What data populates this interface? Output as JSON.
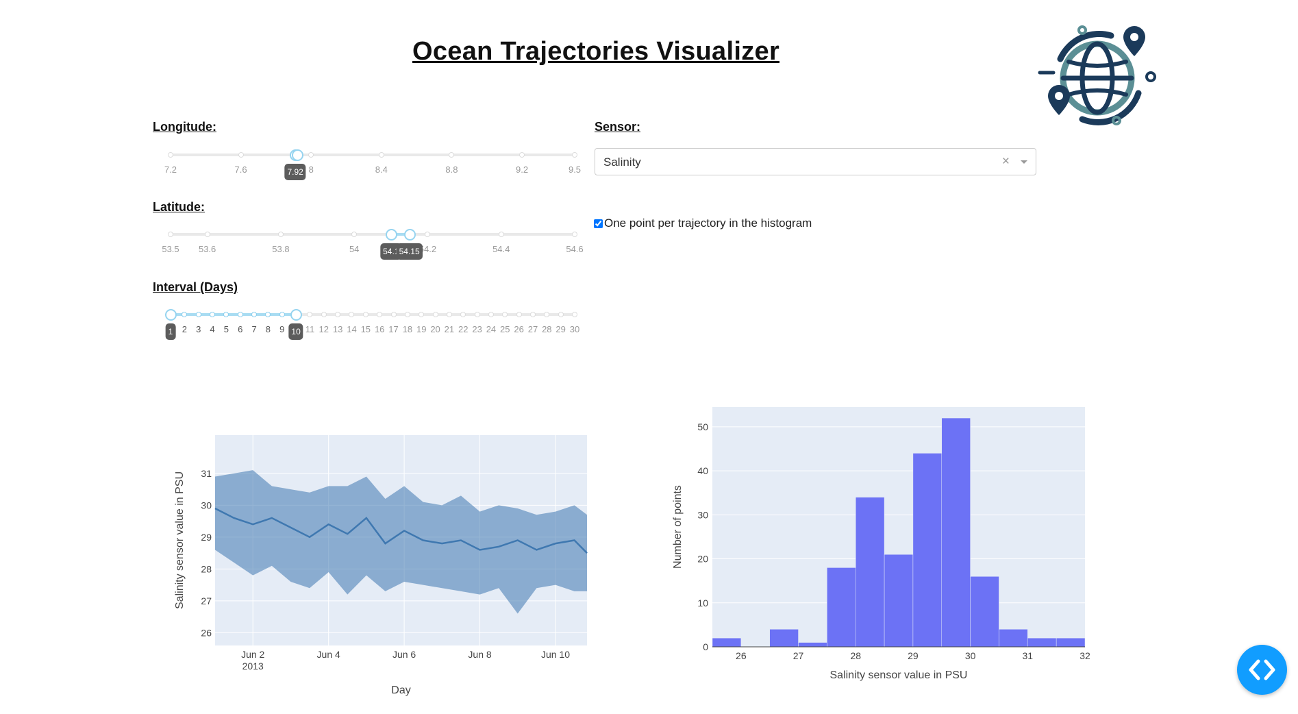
{
  "header": {
    "title": "Ocean Trajectories Visualizer",
    "logo_icon": "globe-location-pins-icon"
  },
  "longitude": {
    "label": "Longitude:",
    "min": 7.2,
    "max": 9.5,
    "marks": [
      "7.2",
      "7.6",
      "8",
      "8.4",
      "8.8",
      "9.2",
      "9.5"
    ],
    "value": [
      7.91,
      7.92
    ],
    "tooltip": "7.92"
  },
  "latitude": {
    "label": "Latitude:",
    "min": 53.5,
    "max": 54.6,
    "marks": [
      "53.5",
      "53.6",
      "53.8",
      "54",
      "54.2",
      "54.4",
      "54.6"
    ],
    "value": [
      54.1,
      54.15
    ],
    "tooltips": [
      "54.1",
      "54.15"
    ]
  },
  "interval": {
    "label": "Interval (Days)",
    "min": 1,
    "max": 30,
    "marks": [
      "1",
      "2",
      "3",
      "4",
      "5",
      "6",
      "7",
      "8",
      "9",
      "10",
      "11",
      "12",
      "13",
      "14",
      "15",
      "16",
      "17",
      "18",
      "19",
      "20",
      "21",
      "22",
      "23",
      "24",
      "25",
      "26",
      "27",
      "28",
      "29",
      "30"
    ],
    "value": [
      1,
      10
    ],
    "tooltips": [
      "1",
      "10"
    ]
  },
  "sensor": {
    "label": "Sensor:",
    "selected": "Salinity",
    "clear_glyph": "×"
  },
  "histogram_option": {
    "label": "One point per trajectory in the histogram",
    "checked": true
  },
  "colors": {
    "line": "#3f78b0",
    "band": "rgba(63,120,176,0.55)",
    "bar": "#6c72f5",
    "plot_bg": "#e5ecf6",
    "accent": "#119dff"
  },
  "chart_data": [
    {
      "type": "line",
      "title": "",
      "xlabel": "Day",
      "ylabel": "Salinity sensor value in PSU",
      "x_range": [
        "2013-06-01",
        "2013-06-10 20:00"
      ],
      "ylim": [
        25.6,
        32.2
      ],
      "x_ticks": [
        {
          "label": "Jun 2",
          "sub": "2013",
          "date": "2013-06-02"
        },
        {
          "label": "Jun 4",
          "sub": "",
          "date": "2013-06-04"
        },
        {
          "label": "Jun 6",
          "sub": "",
          "date": "2013-06-06"
        },
        {
          "label": "Jun 8",
          "sub": "",
          "date": "2013-06-08"
        },
        {
          "label": "Jun 10",
          "sub": "",
          "date": "2013-06-10"
        }
      ],
      "y_ticks": [
        26,
        27,
        28,
        29,
        30,
        31
      ],
      "grid": true,
      "series": [
        {
          "x": [
            "2013-06-01 00:00",
            "2013-06-01 12:00",
            "2013-06-02 00:00",
            "2013-06-02 12:00",
            "2013-06-03 00:00",
            "2013-06-03 12:00",
            "2013-06-04 00:00",
            "2013-06-04 12:00",
            "2013-06-05 00:00",
            "2013-06-05 12:00",
            "2013-06-06 00:00",
            "2013-06-06 12:00",
            "2013-06-07 00:00",
            "2013-06-07 12:00",
            "2013-06-08 00:00",
            "2013-06-08 12:00",
            "2013-06-09 00:00",
            "2013-06-09 12:00",
            "2013-06-10 00:00",
            "2013-06-10 12:00",
            "2013-06-10 20:00"
          ],
          "mean": [
            29.9,
            29.6,
            29.4,
            29.6,
            29.3,
            29.0,
            29.4,
            29.1,
            29.6,
            28.8,
            29.2,
            28.9,
            28.8,
            28.9,
            28.6,
            28.7,
            28.9,
            28.6,
            28.8,
            28.9,
            28.5
          ],
          "lower": [
            28.6,
            28.2,
            27.8,
            28.1,
            27.6,
            27.4,
            27.9,
            27.2,
            27.8,
            27.3,
            27.6,
            27.5,
            27.4,
            27.3,
            27.2,
            27.4,
            26.6,
            27.4,
            27.5,
            27.3,
            27.3
          ],
          "upper": [
            30.9,
            31.0,
            31.1,
            30.6,
            30.5,
            30.4,
            30.6,
            30.6,
            30.9,
            30.2,
            30.6,
            30.1,
            30.0,
            30.3,
            29.8,
            30.0,
            29.9,
            29.7,
            29.8,
            30.0,
            29.7
          ]
        }
      ]
    },
    {
      "type": "bar",
      "title": "",
      "xlabel": "Salinity sensor value in PSU",
      "ylabel": "Number of points",
      "xlim": [
        25.5,
        32
      ],
      "ylim": [
        0,
        54.5
      ],
      "x_ticks": [
        26,
        27,
        28,
        29,
        30,
        31,
        32
      ],
      "y_ticks": [
        0,
        10,
        20,
        30,
        40,
        50
      ],
      "grid": true,
      "bins": [
        {
          "x0": 25.5,
          "x1": 26.0,
          "count": 2
        },
        {
          "x0": 26.5,
          "x1": 27.0,
          "count": 4
        },
        {
          "x0": 27.0,
          "x1": 27.5,
          "count": 1
        },
        {
          "x0": 27.5,
          "x1": 28.0,
          "count": 18
        },
        {
          "x0": 28.0,
          "x1": 28.5,
          "count": 34
        },
        {
          "x0": 28.5,
          "x1": 29.0,
          "count": 21
        },
        {
          "x0": 29.0,
          "x1": 29.5,
          "count": 44
        },
        {
          "x0": 29.5,
          "x1": 30.0,
          "count": 52
        },
        {
          "x0": 30.0,
          "x1": 30.5,
          "count": 16
        },
        {
          "x0": 30.5,
          "x1": 31.0,
          "count": 4
        },
        {
          "x0": 31.0,
          "x1": 31.5,
          "count": 2
        },
        {
          "x0": 31.5,
          "x1": 32.0,
          "count": 2
        }
      ]
    }
  ],
  "fab": {
    "icon": "code-brackets-icon"
  }
}
